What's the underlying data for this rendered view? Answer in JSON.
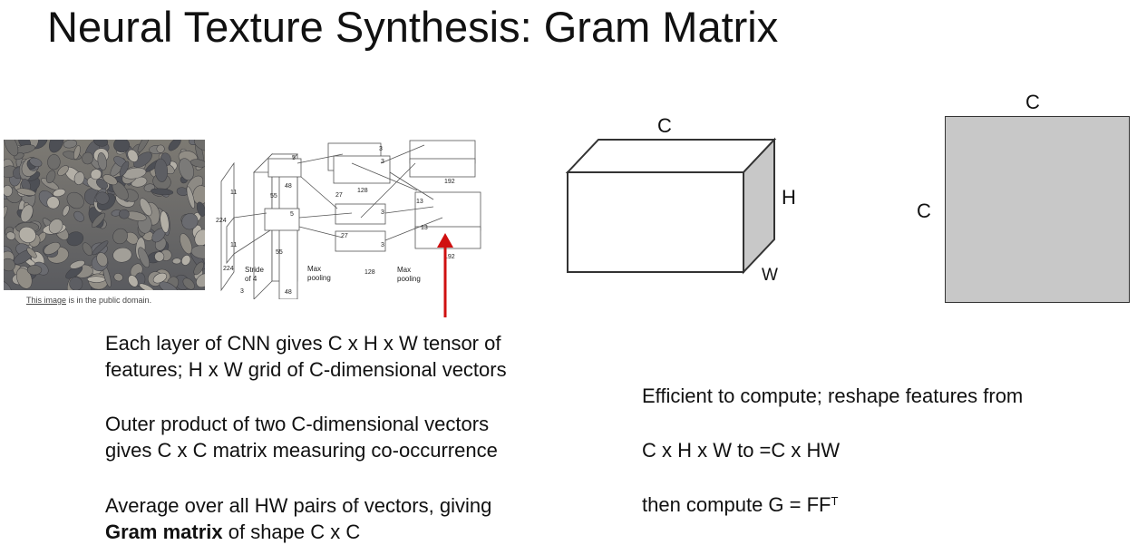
{
  "title": "Neural Texture Synthesis: Gram Matrix",
  "image_caption": {
    "link_text": "This image",
    "rest": " is in the public domain."
  },
  "cnn_diagram": {
    "labels": [
      "224",
      "224",
      "11",
      "11",
      "Stride",
      "of 4",
      "3",
      "55",
      "55",
      "48",
      "48",
      "5",
      "5",
      "27",
      "27",
      "128",
      "128",
      "3",
      "3",
      "3",
      "3",
      "13",
      "13",
      "192",
      "192",
      "Max",
      "pooling",
      "Max",
      "pooling"
    ]
  },
  "tensor": {
    "top_label": "C",
    "right_label": "H",
    "depth_label": "W"
  },
  "gram": {
    "top_label": "C",
    "left_label": "C"
  },
  "bullets": {
    "b1_line1": "Each layer of CNN gives C x H x W tensor of",
    "b1_line2": "features; H x W grid of C-dimensional vectors",
    "b2_line1": "Outer product of two C-dimensional vectors",
    "b2_line2": "gives C x C matrix measuring co-occurrence",
    "b3_line1": "Average over all HW pairs of vectors, giving",
    "b3_bold": "Gram matrix",
    "b3_rest": " of shape C x C"
  },
  "right_text": {
    "line1": "Efficient to compute; reshape features from",
    "line2": "C x H x W to  =C x HW",
    "line3_pre": "then compute G = FF",
    "line3_sup": "T"
  },
  "colors": {
    "arrow": "#d01010",
    "gram_fill": "#c8c8c8",
    "tensor_side": "#c8c8c8"
  }
}
